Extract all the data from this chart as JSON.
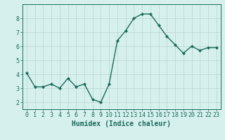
{
  "x": [
    0,
    1,
    2,
    3,
    4,
    5,
    6,
    7,
    8,
    9,
    10,
    11,
    12,
    13,
    14,
    15,
    16,
    17,
    18,
    19,
    20,
    21,
    22,
    23
  ],
  "y": [
    4.1,
    3.1,
    3.1,
    3.3,
    3.0,
    3.7,
    3.1,
    3.3,
    2.2,
    2.0,
    3.3,
    6.4,
    7.1,
    8.0,
    8.3,
    8.3,
    7.5,
    6.7,
    6.1,
    5.5,
    6.0,
    5.7,
    5.9,
    5.9
  ],
  "xlim": [
    -0.5,
    23.5
  ],
  "ylim": [
    1.5,
    9.0
  ],
  "yticks": [
    2,
    3,
    4,
    5,
    6,
    7,
    8
  ],
  "xticks": [
    0,
    1,
    2,
    3,
    4,
    5,
    6,
    7,
    8,
    9,
    10,
    11,
    12,
    13,
    14,
    15,
    16,
    17,
    18,
    19,
    20,
    21,
    22,
    23
  ],
  "xlabel": "Humidex (Indice chaleur)",
  "line_color": "#1a6b5a",
  "marker": "D",
  "marker_size": 2.0,
  "bg_color": "#d6f0ee",
  "grid_color": "#b8d4d0",
  "tick_color": "#1a6b5a",
  "label_color": "#1a6b5a",
  "xlabel_fontsize": 7.0,
  "tick_fontsize": 6.0,
  "linewidth": 1.0
}
